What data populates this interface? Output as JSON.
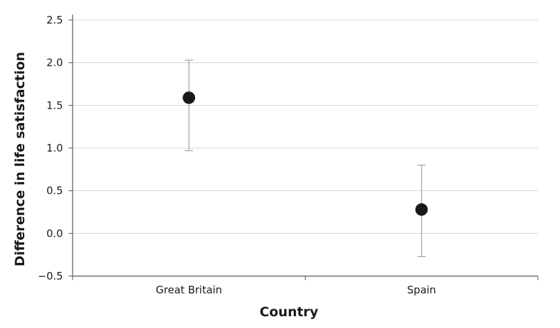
{
  "chart_data": {
    "type": "scatter",
    "title": "",
    "xlabel": "Country",
    "ylabel": "Difference in life satisfaction",
    "categories": [
      "Great Britain",
      "Spain"
    ],
    "series": [
      {
        "values": [
          1.59,
          0.28
        ],
        "error_low": [
          0.97,
          -0.27
        ],
        "error_high": [
          2.03,
          0.8
        ]
      }
    ],
    "ylim": [
      -0.5,
      2.5
    ],
    "yticks": [
      -0.5,
      0.0,
      0.5,
      1.0,
      1.5,
      2.0,
      2.5
    ],
    "ytick_labels": [
      "−0.5",
      "0.0",
      "0.5",
      "1.0",
      "1.5",
      "2.0",
      "2.5"
    ],
    "grid": true,
    "marker_color": "#1a1a1a",
    "grid_color": "#d4d4d4",
    "axis_color": "#555555",
    "error_bar_color": "#8c8c8c"
  }
}
